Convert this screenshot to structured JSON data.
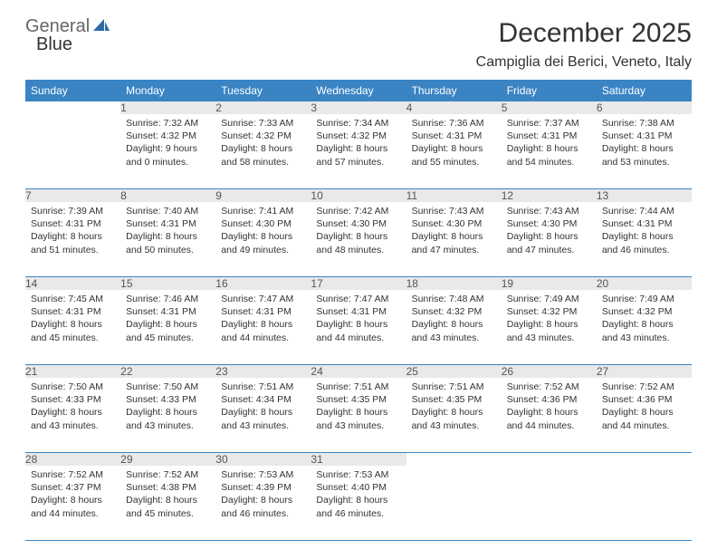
{
  "brand": {
    "part1": "General",
    "part2": "Blue"
  },
  "title": "December 2025",
  "location": "Campiglia dei Berici, Veneto, Italy",
  "colors": {
    "header_bg": "#3a84c4",
    "header_fg": "#ffffff",
    "daynum_bg": "#e9e9e9",
    "row_border": "#3a84c4",
    "text": "#333333",
    "brand_gray": "#666666",
    "brand_blue": "#3a84c4"
  },
  "daysOfWeek": [
    "Sunday",
    "Monday",
    "Tuesday",
    "Wednesday",
    "Thursday",
    "Friday",
    "Saturday"
  ],
  "calendar": {
    "type": "table",
    "startDay": 1,
    "endDay": 31,
    "firstWeekday": 1,
    "weeks": [
      [
        null,
        {
          "n": 1,
          "sunrise": "7:32 AM",
          "sunset": "4:32 PM",
          "daylight": "9 hours and 0 minutes."
        },
        {
          "n": 2,
          "sunrise": "7:33 AM",
          "sunset": "4:32 PM",
          "daylight": "8 hours and 58 minutes."
        },
        {
          "n": 3,
          "sunrise": "7:34 AM",
          "sunset": "4:32 PM",
          "daylight": "8 hours and 57 minutes."
        },
        {
          "n": 4,
          "sunrise": "7:36 AM",
          "sunset": "4:31 PM",
          "daylight": "8 hours and 55 minutes."
        },
        {
          "n": 5,
          "sunrise": "7:37 AM",
          "sunset": "4:31 PM",
          "daylight": "8 hours and 54 minutes."
        },
        {
          "n": 6,
          "sunrise": "7:38 AM",
          "sunset": "4:31 PM",
          "daylight": "8 hours and 53 minutes."
        }
      ],
      [
        {
          "n": 7,
          "sunrise": "7:39 AM",
          "sunset": "4:31 PM",
          "daylight": "8 hours and 51 minutes."
        },
        {
          "n": 8,
          "sunrise": "7:40 AM",
          "sunset": "4:31 PM",
          "daylight": "8 hours and 50 minutes."
        },
        {
          "n": 9,
          "sunrise": "7:41 AM",
          "sunset": "4:30 PM",
          "daylight": "8 hours and 49 minutes."
        },
        {
          "n": 10,
          "sunrise": "7:42 AM",
          "sunset": "4:30 PM",
          "daylight": "8 hours and 48 minutes."
        },
        {
          "n": 11,
          "sunrise": "7:43 AM",
          "sunset": "4:30 PM",
          "daylight": "8 hours and 47 minutes."
        },
        {
          "n": 12,
          "sunrise": "7:43 AM",
          "sunset": "4:30 PM",
          "daylight": "8 hours and 47 minutes."
        },
        {
          "n": 13,
          "sunrise": "7:44 AM",
          "sunset": "4:31 PM",
          "daylight": "8 hours and 46 minutes."
        }
      ],
      [
        {
          "n": 14,
          "sunrise": "7:45 AM",
          "sunset": "4:31 PM",
          "daylight": "8 hours and 45 minutes."
        },
        {
          "n": 15,
          "sunrise": "7:46 AM",
          "sunset": "4:31 PM",
          "daylight": "8 hours and 45 minutes."
        },
        {
          "n": 16,
          "sunrise": "7:47 AM",
          "sunset": "4:31 PM",
          "daylight": "8 hours and 44 minutes."
        },
        {
          "n": 17,
          "sunrise": "7:47 AM",
          "sunset": "4:31 PM",
          "daylight": "8 hours and 44 minutes."
        },
        {
          "n": 18,
          "sunrise": "7:48 AM",
          "sunset": "4:32 PM",
          "daylight": "8 hours and 43 minutes."
        },
        {
          "n": 19,
          "sunrise": "7:49 AM",
          "sunset": "4:32 PM",
          "daylight": "8 hours and 43 minutes."
        },
        {
          "n": 20,
          "sunrise": "7:49 AM",
          "sunset": "4:32 PM",
          "daylight": "8 hours and 43 minutes."
        }
      ],
      [
        {
          "n": 21,
          "sunrise": "7:50 AM",
          "sunset": "4:33 PM",
          "daylight": "8 hours and 43 minutes."
        },
        {
          "n": 22,
          "sunrise": "7:50 AM",
          "sunset": "4:33 PM",
          "daylight": "8 hours and 43 minutes."
        },
        {
          "n": 23,
          "sunrise": "7:51 AM",
          "sunset": "4:34 PM",
          "daylight": "8 hours and 43 minutes."
        },
        {
          "n": 24,
          "sunrise": "7:51 AM",
          "sunset": "4:35 PM",
          "daylight": "8 hours and 43 minutes."
        },
        {
          "n": 25,
          "sunrise": "7:51 AM",
          "sunset": "4:35 PM",
          "daylight": "8 hours and 43 minutes."
        },
        {
          "n": 26,
          "sunrise": "7:52 AM",
          "sunset": "4:36 PM",
          "daylight": "8 hours and 44 minutes."
        },
        {
          "n": 27,
          "sunrise": "7:52 AM",
          "sunset": "4:36 PM",
          "daylight": "8 hours and 44 minutes."
        }
      ],
      [
        {
          "n": 28,
          "sunrise": "7:52 AM",
          "sunset": "4:37 PM",
          "daylight": "8 hours and 44 minutes."
        },
        {
          "n": 29,
          "sunrise": "7:52 AM",
          "sunset": "4:38 PM",
          "daylight": "8 hours and 45 minutes."
        },
        {
          "n": 30,
          "sunrise": "7:53 AM",
          "sunset": "4:39 PM",
          "daylight": "8 hours and 46 minutes."
        },
        {
          "n": 31,
          "sunrise": "7:53 AM",
          "sunset": "4:40 PM",
          "daylight": "8 hours and 46 minutes."
        },
        null,
        null,
        null
      ]
    ],
    "labels": {
      "sunrise": "Sunrise:",
      "sunset": "Sunset:",
      "daylight": "Daylight:"
    }
  }
}
